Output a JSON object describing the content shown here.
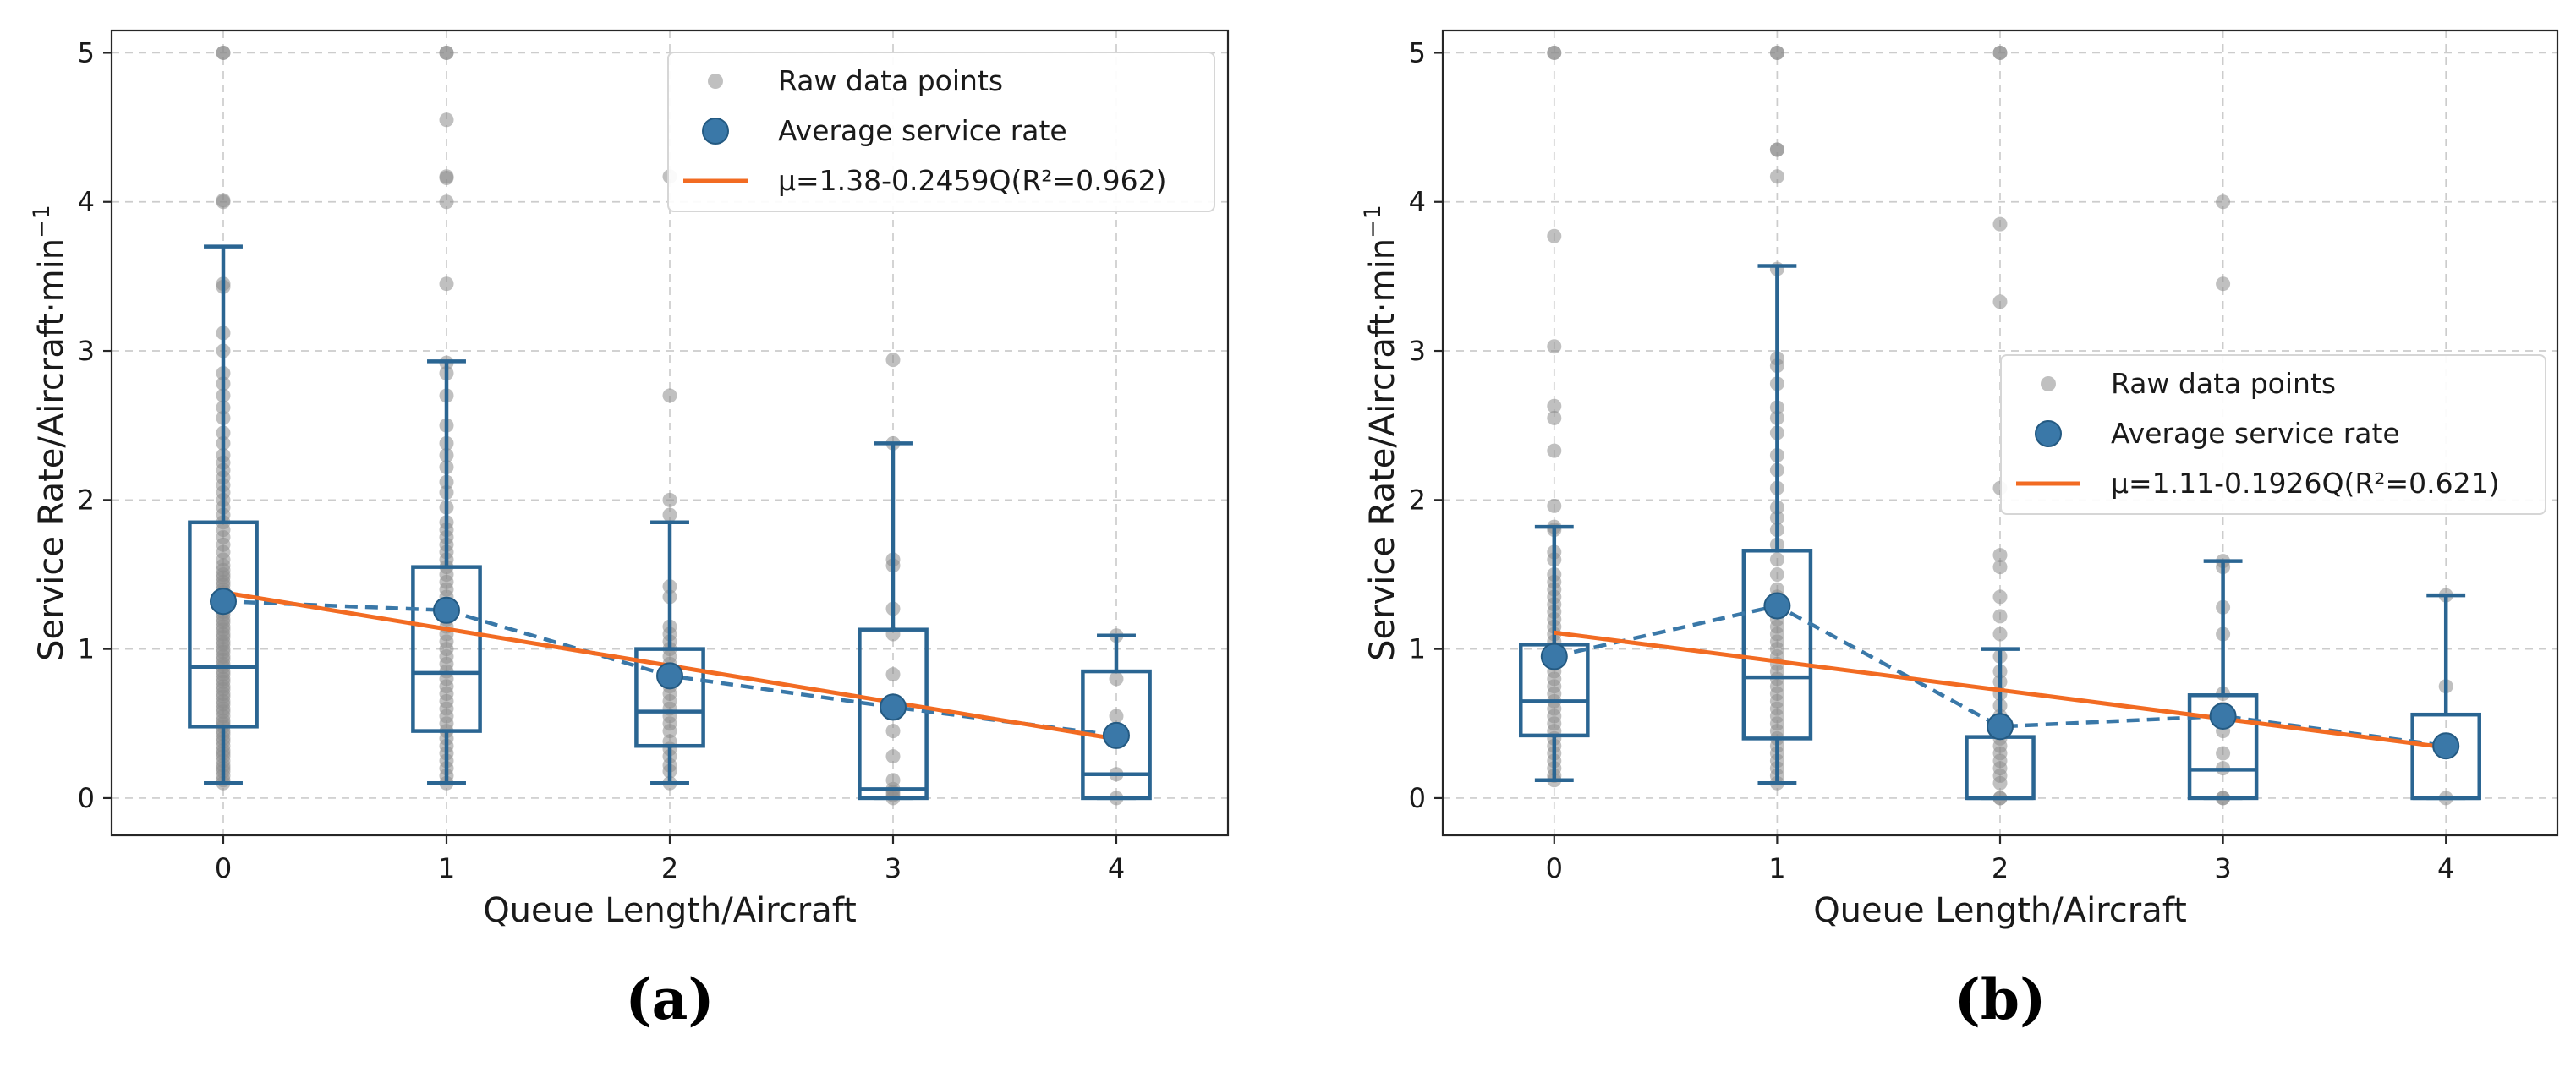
{
  "colors": {
    "raw": "#8c8c8c",
    "box": "#2a6592",
    "avg": "#3a78a8",
    "fit": "#f26b22"
  },
  "chart_data": [
    {
      "type": "box",
      "panel_label": "(a)",
      "xlabel": "Queue Length/Aircraft",
      "ylabel": "Service Rate/Aircraft·min",
      "ylabel_sup": "−1",
      "categories": [
        0,
        1,
        2,
        3,
        4
      ],
      "yticks": [
        0,
        1,
        2,
        3,
        4,
        5
      ],
      "xlim": [
        -0.5,
        4.5
      ],
      "ylim": [
        -0.25,
        5.15
      ],
      "grid": true,
      "legend_position": "top-right",
      "legend": [
        {
          "type": "scatter-raw",
          "label": "Raw data points"
        },
        {
          "type": "scatter-avg",
          "label": "Average service rate"
        },
        {
          "type": "line-fit",
          "label": "μ=1.38-0.2459Q(R²=0.962)"
        }
      ],
      "boxes": [
        {
          "q": 0,
          "whislo": 0.1,
          "q1": 0.48,
          "med": 0.88,
          "q3": 1.85,
          "whishi": 3.7
        },
        {
          "q": 1,
          "whislo": 0.1,
          "q1": 0.45,
          "med": 0.84,
          "q3": 1.55,
          "whishi": 2.93
        },
        {
          "q": 2,
          "whislo": 0.1,
          "q1": 0.35,
          "med": 0.58,
          "q3": 1.0,
          "whishi": 1.85
        },
        {
          "q": 3,
          "whislo": 0.0,
          "q1": 0.0,
          "med": 0.06,
          "q3": 1.13,
          "whishi": 2.38
        },
        {
          "q": 4,
          "whislo": 0.0,
          "q1": 0.0,
          "med": 0.16,
          "q3": 0.85,
          "whishi": 1.09
        }
      ],
      "averages": [
        1.32,
        1.26,
        0.82,
        0.61,
        0.42
      ],
      "fit": {
        "intercept": 1.38,
        "slope": -0.2459,
        "r2": 0.962,
        "x_range": [
          0,
          4
        ]
      },
      "raw_points": [
        {
          "q": 0,
          "values": [
            0.1,
            0.12,
            0.15,
            0.18,
            0.2,
            0.22,
            0.25,
            0.28,
            0.3,
            0.32,
            0.35,
            0.38,
            0.4,
            0.43,
            0.45,
            0.48,
            0.5,
            0.52,
            0.55,
            0.58,
            0.6,
            0.63,
            0.65,
            0.68,
            0.7,
            0.73,
            0.75,
            0.78,
            0.8,
            0.83,
            0.85,
            0.88,
            0.9,
            0.93,
            0.95,
            0.98,
            1.0,
            1.03,
            1.05,
            1.08,
            1.1,
            1.13,
            1.15,
            1.18,
            1.2,
            1.23,
            1.25,
            1.28,
            1.3,
            1.33,
            1.35,
            1.38,
            1.4,
            1.43,
            1.45,
            1.48,
            1.5,
            1.53,
            1.56,
            1.6,
            1.65,
            1.7,
            1.75,
            1.8,
            1.85,
            1.9,
            1.95,
            2.0,
            2.05,
            2.1,
            2.15,
            2.2,
            2.25,
            2.3,
            2.38,
            2.45,
            2.55,
            2.62,
            2.7,
            2.78,
            2.85,
            3.0,
            3.12,
            3.43,
            3.45,
            4.0,
            4.01,
            5.0,
            5.0
          ]
        },
        {
          "q": 1,
          "values": [
            0.1,
            0.15,
            0.2,
            0.25,
            0.3,
            0.35,
            0.4,
            0.45,
            0.5,
            0.55,
            0.6,
            0.65,
            0.7,
            0.75,
            0.8,
            0.85,
            0.9,
            0.95,
            1.0,
            1.05,
            1.1,
            1.15,
            1.2,
            1.25,
            1.3,
            1.35,
            1.4,
            1.45,
            1.5,
            1.55,
            1.6,
            1.65,
            1.7,
            1.75,
            1.8,
            1.85,
            1.95,
            2.05,
            2.12,
            2.22,
            2.3,
            2.38,
            2.5,
            2.7,
            2.85,
            2.92,
            3.45,
            4.0,
            4.16,
            4.17,
            4.55,
            5.0,
            5.0
          ]
        },
        {
          "q": 2,
          "values": [
            0.1,
            0.18,
            0.22,
            0.28,
            0.33,
            0.38,
            0.45,
            0.5,
            0.55,
            0.6,
            0.65,
            0.7,
            0.75,
            0.8,
            0.85,
            0.9,
            0.95,
            1.0,
            1.05,
            1.1,
            1.15,
            1.35,
            1.42,
            1.9,
            2.0,
            2.7,
            4.17
          ]
        },
        {
          "q": 3,
          "values": [
            0.0,
            0.02,
            0.04,
            0.06,
            0.12,
            0.28,
            0.45,
            0.62,
            0.83,
            1.1,
            1.27,
            1.56,
            1.6,
            2.38,
            2.94
          ]
        },
        {
          "q": 4,
          "values": [
            0.0,
            0.16,
            0.42,
            0.55,
            0.8,
            1.09
          ]
        }
      ]
    },
    {
      "type": "box",
      "panel_label": "(b)",
      "xlabel": "Queue Length/Aircraft",
      "ylabel": "Service Rate/Aircraft·min",
      "ylabel_sup": "−1",
      "categories": [
        0,
        1,
        2,
        3,
        4
      ],
      "yticks": [
        0,
        1,
        2,
        3,
        4,
        5
      ],
      "xlim": [
        -0.5,
        4.5
      ],
      "ylim": [
        -0.25,
        5.15
      ],
      "grid": true,
      "legend_position": "center-right",
      "legend": [
        {
          "type": "scatter-raw",
          "label": "Raw data points"
        },
        {
          "type": "scatter-avg",
          "label": "Average service rate"
        },
        {
          "type": "line-fit",
          "label": "μ=1.11-0.1926Q(R²=0.621)"
        }
      ],
      "boxes": [
        {
          "q": 0,
          "whislo": 0.12,
          "q1": 0.42,
          "med": 0.65,
          "q3": 1.03,
          "whishi": 1.82
        },
        {
          "q": 1,
          "whislo": 0.1,
          "q1": 0.4,
          "med": 0.81,
          "q3": 1.66,
          "whishi": 3.57
        },
        {
          "q": 2,
          "whislo": 0.0,
          "q1": 0.0,
          "med": 0.0,
          "q3": 0.41,
          "whishi": 1.0
        },
        {
          "q": 3,
          "whislo": 0.0,
          "q1": 0.0,
          "med": 0.19,
          "q3": 0.69,
          "whishi": 1.59
        },
        {
          "q": 4,
          "whislo": 0.0,
          "q1": 0.0,
          "med": 0.0,
          "q3": 0.56,
          "whishi": 1.36
        }
      ],
      "averages": [
        0.95,
        1.29,
        0.48,
        0.55,
        0.35
      ],
      "fit": {
        "intercept": 1.11,
        "slope": -0.1926,
        "r2": 0.621,
        "x_range": [
          0,
          4
        ]
      },
      "raw_points": [
        {
          "q": 0,
          "values": [
            0.12,
            0.15,
            0.2,
            0.25,
            0.3,
            0.35,
            0.4,
            0.45,
            0.5,
            0.55,
            0.6,
            0.65,
            0.7,
            0.75,
            0.8,
            0.85,
            0.9,
            0.95,
            1.0,
            1.05,
            1.1,
            1.15,
            1.2,
            1.25,
            1.3,
            1.35,
            1.4,
            1.45,
            1.5,
            1.6,
            1.65,
            1.8,
            1.82,
            1.96,
            2.33,
            2.55,
            2.63,
            3.03,
            3.77,
            5.0,
            5.0
          ]
        },
        {
          "q": 1,
          "values": [
            0.1,
            0.15,
            0.2,
            0.25,
            0.3,
            0.35,
            0.4,
            0.45,
            0.5,
            0.55,
            0.6,
            0.65,
            0.7,
            0.75,
            0.8,
            0.85,
            0.9,
            0.95,
            1.0,
            1.05,
            1.1,
            1.15,
            1.2,
            1.25,
            1.3,
            1.35,
            1.4,
            1.5,
            1.6,
            1.7,
            1.8,
            1.88,
            1.95,
            2.08,
            2.2,
            2.3,
            2.45,
            2.55,
            2.62,
            2.78,
            2.9,
            2.95,
            3.55,
            4.17,
            4.35,
            4.35,
            5.0,
            5.0
          ]
        },
        {
          "q": 2,
          "values": [
            0.0,
            0.0,
            0.1,
            0.15,
            0.2,
            0.25,
            0.3,
            0.35,
            0.4,
            0.45,
            0.5,
            0.55,
            0.62,
            0.7,
            0.78,
            0.85,
            0.95,
            1.1,
            1.22,
            1.35,
            1.55,
            1.63,
            2.08,
            3.33,
            3.85,
            5.0,
            5.0
          ]
        },
        {
          "q": 3,
          "values": [
            0.0,
            0.0,
            0.2,
            0.3,
            0.45,
            0.55,
            0.6,
            0.7,
            1.1,
            1.28,
            1.55,
            1.59,
            3.45,
            4.0
          ]
        },
        {
          "q": 4,
          "values": [
            0.0,
            0.35,
            0.75,
            1.36
          ]
        }
      ]
    }
  ]
}
